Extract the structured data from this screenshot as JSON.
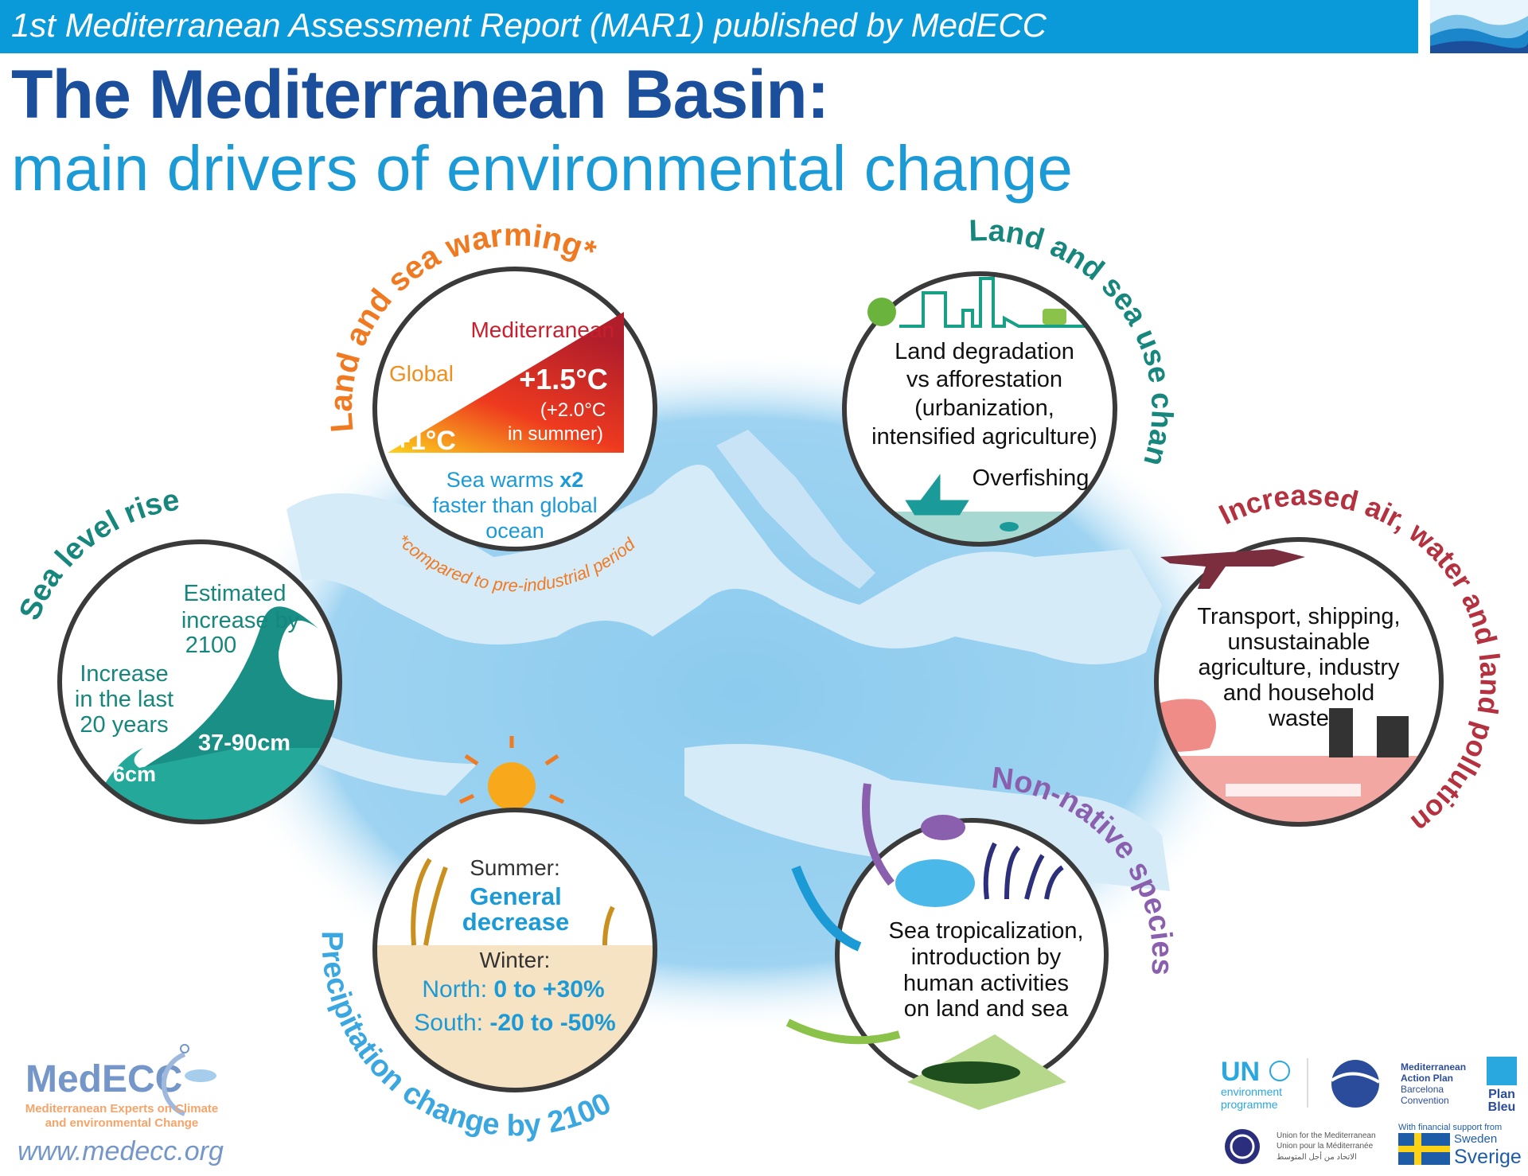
{
  "header": {
    "banner": "1st Mediterranean Assessment Report (MAR1) published by MedECC",
    "title": "The Mediterranean Basin:",
    "subtitle": "main drivers of environmental change"
  },
  "colors": {
    "banner": "#0a9ad9",
    "title": "#1b4f9c",
    "subtitle": "#1b9ad6",
    "warming": "#f07a22",
    "land_use": "#17867c",
    "sea_level": "#17867c",
    "pollution": "#b4323f",
    "non_native": "#8a5fae",
    "precipitation": "#3aa7e0",
    "map_sea": "#8ccbee",
    "map_land": "#d6ebf8"
  },
  "warming": {
    "label": "Land and sea warming*",
    "mediterranean": "Mediterranean",
    "global": "Global",
    "med_value": "+1.5°C",
    "med_summer_1": "(+2.0°C",
    "med_summer_2": "in summer)",
    "global_value": "+1°C",
    "sea_1": "Sea warms ",
    "sea_x2": "x2",
    "sea_2": "faster than global",
    "sea_3": "ocean",
    "footnote": "*compared to pre-industrial period"
  },
  "land_use": {
    "label": "Land and sea use change",
    "lines": [
      "Land degradation",
      "vs afforestation",
      "(urbanization,",
      "intensified agriculture)"
    ],
    "overfishing": "Overfishing",
    "icons": [
      "tree-icon",
      "city-skyline-icon",
      "tractor-icon",
      "fishing-boat-icon",
      "fish-icon"
    ]
  },
  "sea_level": {
    "label": "Sea level rise",
    "estimated": [
      "Estimated",
      "increase by",
      "2100"
    ],
    "increase": [
      "Increase",
      "in the last",
      "20 years"
    ],
    "big_value": "37-90cm",
    "small_value": "6cm",
    "icons": [
      "wave-icon"
    ]
  },
  "pollution": {
    "label": "Increased air, water and land pollution",
    "lines": [
      "Transport, shipping,",
      "unsustainable",
      "agriculture, industry",
      "and household",
      "waste"
    ],
    "icons": [
      "airplane-icon",
      "turtle-icon",
      "factory-icon",
      "cargo-ship-icon"
    ]
  },
  "precipitation": {
    "label": "Precipitation change by 2100",
    "summer": "Summer:",
    "summer_value_1": "General",
    "summer_value_2": "decrease",
    "winter": "Winter:",
    "north_label": "North: ",
    "north_value": "0 to +30%",
    "south_label": "South: ",
    "south_value": "-20 to -50%",
    "icons": [
      "sun-icon",
      "water-drop-icon",
      "dry-crop-icon"
    ]
  },
  "non_native": {
    "label": "Non-native species",
    "lines": [
      "Sea tropicalization,",
      "introduction by",
      "human activities",
      "on land and sea"
    ],
    "icons": [
      "fish-icon",
      "seaweed-icon",
      "arrow-icon",
      "caterpillar-icon"
    ]
  },
  "footer": {
    "medecc_logo": "MedECC",
    "medecc_tagline_1": "Mediterranean Experts on Climate",
    "medecc_tagline_2": "and environmental Change",
    "url": "www.medecc.org",
    "unep_1": "UN",
    "unep_2": "environment",
    "unep_3": "programme",
    "map_1": "Mediterranean",
    "map_2": "Action Plan",
    "map_3": "Barcelona",
    "map_4": "Convention",
    "planbleu_1": "Plan",
    "planbleu_2": "Bleu",
    "ufm_1": "Union for the Mediterranean",
    "ufm_2": "Union pour la Méditerranée",
    "ufm_3": "الاتحاد من أجل المتوسط",
    "support": "With financial support from",
    "sweden": "Sweden",
    "sverige": "Sverige"
  }
}
